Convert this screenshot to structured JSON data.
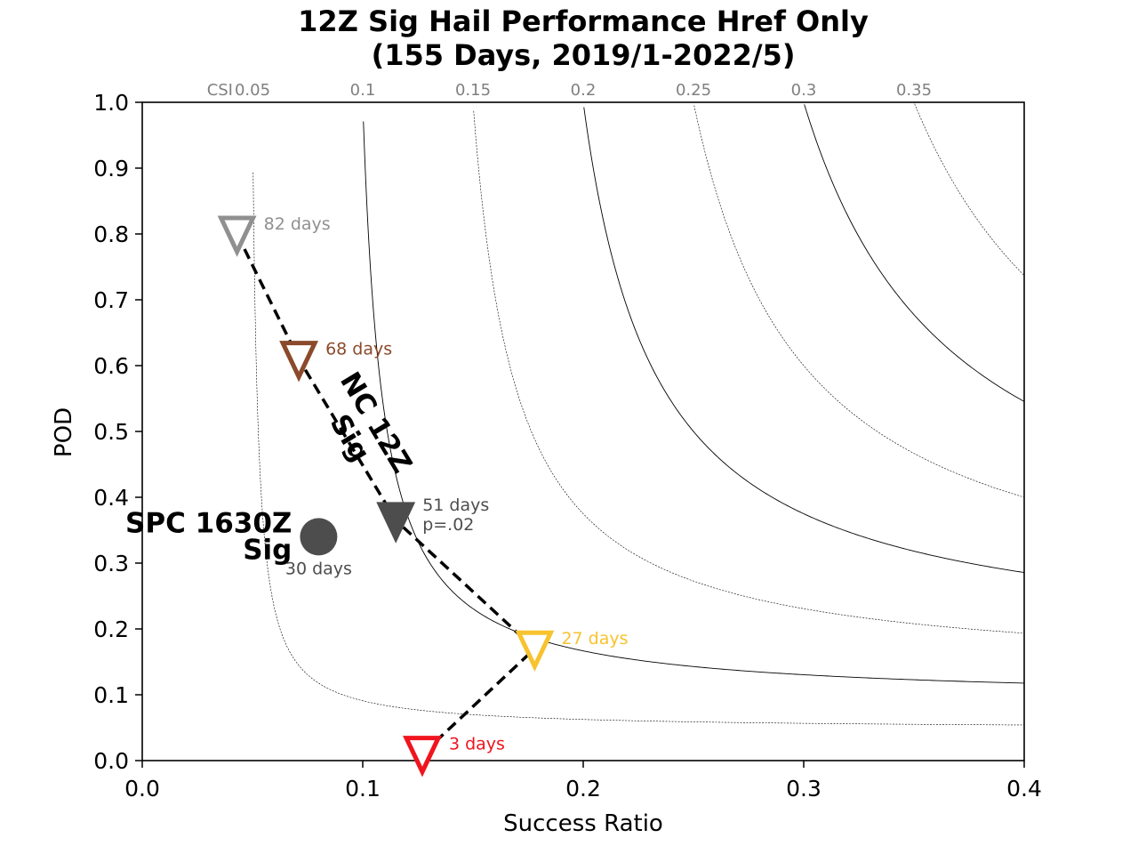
{
  "chart_data": {
    "type": "scatter",
    "title_lines": [
      "12Z Sig Hail Performance Href Only",
      "(155 Days, 2019/1-2022/5)"
    ],
    "xlabel": "Success Ratio",
    "ylabel": "POD",
    "xlim": [
      0.0,
      0.4
    ],
    "ylim": [
      0.0,
      1.0
    ],
    "x_ticks": [
      "0.0",
      "0.1",
      "0.2",
      "0.3",
      "0.4"
    ],
    "y_ticks": [
      "0.0",
      "0.1",
      "0.2",
      "0.3",
      "0.4",
      "0.5",
      "0.6",
      "0.7",
      "0.8",
      "0.9",
      "1.0"
    ],
    "csi_prefix": "CSI",
    "csi_contours": [
      {
        "value": 0.05,
        "label": "0.05",
        "style": "dotted"
      },
      {
        "value": 0.1,
        "label": "0.1",
        "style": "solid"
      },
      {
        "value": 0.15,
        "label": "0.15",
        "style": "dotted"
      },
      {
        "value": 0.2,
        "label": "0.2",
        "style": "solid"
      },
      {
        "value": 0.25,
        "label": "0.25",
        "style": "dotted"
      },
      {
        "value": 0.3,
        "label": "0.3",
        "style": "solid"
      },
      {
        "value": 0.35,
        "label": "0.35",
        "style": "dotted"
      }
    ],
    "series": [
      {
        "label": "NC 12Z\nSig",
        "label_lines": [
          "NC 12Z",
          "Sig"
        ],
        "points": [
          {
            "x": 0.043,
            "y": 0.8,
            "label": "82 days",
            "color": "#909090",
            "filled": false
          },
          {
            "x": 0.071,
            "y": 0.61,
            "label": "68 days",
            "color": "#8b4a2b",
            "filled": false
          },
          {
            "x": 0.115,
            "y": 0.365,
            "label": "51 days",
            "label2": "p=.02",
            "color": "#4d4d4d",
            "filled": true
          },
          {
            "x": 0.178,
            "y": 0.17,
            "label": "27 days",
            "color": "#f7c32e",
            "filled": false
          },
          {
            "x": 0.127,
            "y": 0.01,
            "label": "3 days",
            "color": "#f0141e",
            "filled": false
          }
        ]
      }
    ],
    "reference_point": {
      "x": 0.08,
      "y": 0.34,
      "label_lines": [
        "SPC 1630Z",
        "Sig"
      ],
      "days": "30 days",
      "color": "#4d4d4d"
    }
  }
}
